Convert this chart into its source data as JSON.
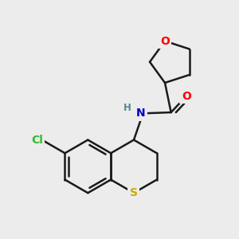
{
  "bg": "#ececec",
  "bond_color": "#1a1a1a",
  "O_color": "#ff0000",
  "N_color": "#0000cc",
  "S_color": "#ccaa00",
  "Cl_color": "#33bb33",
  "H_color": "#558888",
  "lw": 1.8,
  "fs": 10,
  "xlim": [
    -2.3,
    2.3
  ],
  "ylim": [
    -2.4,
    2.0
  ]
}
